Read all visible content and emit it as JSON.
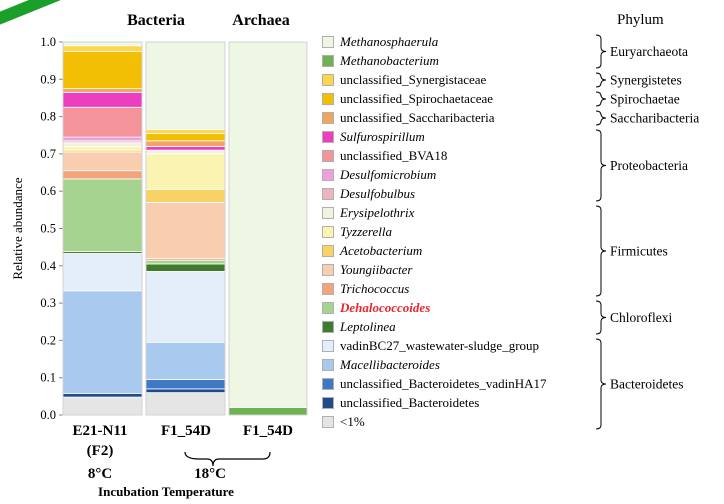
{
  "chart_data": {
    "type": "stacked-bar",
    "ylabel": "Relative abundance",
    "ylim": [
      0,
      1.0
    ],
    "yticks": [
      "0.0",
      "0.1",
      "0.2",
      "0.3",
      "0.4",
      "0.5",
      "0.6",
      "0.7",
      "0.8",
      "0.9",
      "1.0"
    ],
    "column_headers": [
      {
        "label": "Bacteria"
      },
      {
        "label": "Archaea"
      }
    ],
    "bars": [
      {
        "category": "E21-N11",
        "category_line2": "(F2)",
        "domain": "Bacteria",
        "segments": [
          {
            "taxon": "<1%",
            "value": 0.048
          },
          {
            "taxon": "unclassified_Bacteroidetes",
            "value": 0.01
          },
          {
            "taxon": "Macellibacteroides",
            "value": 0.275
          },
          {
            "taxon": "vadinBC27_wastewater-sludge_group",
            "value": 0.1
          },
          {
            "taxon": "Leptolinea",
            "value": 0.005
          },
          {
            "taxon": "Dehalococcoides",
            "value": 0.195
          },
          {
            "taxon": "Trichococcus",
            "value": 0.022
          },
          {
            "taxon": "Youngiibacter",
            "value": 0.05
          },
          {
            "taxon": "Acetobacterium",
            "value": 0.005
          },
          {
            "taxon": "Tyzzerella",
            "value": 0.01
          },
          {
            "taxon": "Erysipelothrix",
            "value": 0.01
          },
          {
            "taxon": "Desulfobulbus",
            "value": 0.005
          },
          {
            "taxon": "Desulfomicrobium",
            "value": 0.01
          },
          {
            "taxon": "unclassified_BVA18",
            "value": 0.08
          },
          {
            "taxon": "Sulfurospirillum",
            "value": 0.04
          },
          {
            "taxon": "unclassified_Saccharibacteria",
            "value": 0.01
          },
          {
            "taxon": "unclassified_Spirochaetaceae",
            "value": 0.1
          },
          {
            "taxon": "unclassified_Synergistaceae",
            "value": 0.015
          },
          {
            "taxon": "Methanobacterium",
            "value": 0.0
          },
          {
            "taxon": "Methanosphaerula",
            "value": 0.01
          }
        ]
      },
      {
        "category": "F1_54D",
        "domain": "Bacteria",
        "segments": [
          {
            "taxon": "<1%",
            "value": 0.06
          },
          {
            "taxon": "unclassified_Bacteroidetes",
            "value": 0.01
          },
          {
            "taxon": "unclassified_Bacteroidetes_vadinHA17",
            "value": 0.025
          },
          {
            "taxon": "Macellibacteroides",
            "value": 0.1
          },
          {
            "taxon": "vadinBC27_wastewater-sludge_group",
            "value": 0.19
          },
          {
            "taxon": "Leptolinea",
            "value": 0.02
          },
          {
            "taxon": "Dehalococcoides",
            "value": 0.01
          },
          {
            "taxon": "Trichococcus",
            "value": 0.005
          },
          {
            "taxon": "Youngiibacter",
            "value": 0.15
          },
          {
            "taxon": "Acetobacterium",
            "value": 0.035
          },
          {
            "taxon": "Tyzzerella",
            "value": 0.095
          },
          {
            "taxon": "Erysipelothrix",
            "value": 0.01
          },
          {
            "taxon": "Sulfurospirillum",
            "value": 0.01
          },
          {
            "taxon": "unclassified_Saccharibacteria",
            "value": 0.015
          },
          {
            "taxon": "unclassified_Spirochaetaceae",
            "value": 0.02
          },
          {
            "taxon": "unclassified_Synergistaceae",
            "value": 0.01
          },
          {
            "taxon": "Methanosphaerula",
            "value": 0.235
          }
        ]
      },
      {
        "category": "F1_54D",
        "domain": "Archaea",
        "segments": [
          {
            "taxon": "Methanobacterium",
            "value": 0.02
          },
          {
            "taxon": "Methanosphaerula",
            "value": 0.98
          }
        ]
      }
    ],
    "legend": [
      {
        "label": "Methanosphaerula",
        "color": "#eef6e4",
        "italic": true
      },
      {
        "label": "Methanobacterium",
        "color": "#6fb253",
        "italic": true
      },
      {
        "label": "unclassified_Synergistaceae",
        "color": "#ffd54a",
        "italic": false
      },
      {
        "label": "unclassified_Spirochaetaceae",
        "color": "#f2bf05",
        "italic": false
      },
      {
        "label": "unclassified_Saccharibacteria",
        "color": "#f4a461",
        "italic": false
      },
      {
        "label": "Sulfurospirillum",
        "color": "#ec3fc0",
        "italic": true
      },
      {
        "label": "unclassified_BVA18",
        "color": "#f4949a",
        "italic": false
      },
      {
        "label": "Desulfomicrobium",
        "color": "#eca1dc",
        "italic": true
      },
      {
        "label": "Desulfobulbus",
        "color": "#ebb5c0",
        "italic": true
      },
      {
        "label": "Erysipelothrix",
        "color": "#f1f3df",
        "italic": true
      },
      {
        "label": "Tyzzerella",
        "color": "#fbf3b2",
        "italic": true
      },
      {
        "label": "Acetobacterium",
        "color": "#f9d266",
        "italic": true
      },
      {
        "label": "Youngiibacter",
        "color": "#f9cdb0",
        "italic": true
      },
      {
        "label": "Trichococcus",
        "color": "#f4a47a",
        "italic": true
      },
      {
        "label": "Dehalococcoides",
        "color": "#a6d38f",
        "italic": true,
        "highlight": true
      },
      {
        "label": "Leptolinea",
        "color": "#3e7b2a",
        "italic": true
      },
      {
        "label": "vadinBC27_wastewater-sludge_group",
        "color": "#e3eefa",
        "italic": false
      },
      {
        "label": "Macellibacteroides",
        "color": "#a9c9ef",
        "italic": true
      },
      {
        "label": "unclassified_Bacteroidetes_vadinHA17",
        "color": "#3f79c5",
        "italic": false
      },
      {
        "label": "unclassified_Bacteroidetes",
        "color": "#1f4d8c",
        "italic": false
      },
      {
        "label": "<1%",
        "color": "#e5e5e5",
        "italic": false
      }
    ],
    "phylum_header": "Phylum",
    "phyla": [
      {
        "name": "Euryarchaeota",
        "first": 0,
        "last": 1
      },
      {
        "name": "Synergistetes",
        "first": 2,
        "last": 2
      },
      {
        "name": "Spirochaetae",
        "first": 3,
        "last": 3
      },
      {
        "name": "Saccharibacteria",
        "first": 4,
        "last": 4
      },
      {
        "name": "Proteobacteria",
        "first": 5,
        "last": 8
      },
      {
        "name": "Firmicutes",
        "first": 9,
        "last": 13
      },
      {
        "name": "Chloroflexi",
        "first": 14,
        "last": 15
      },
      {
        "name": "Bacteroidetes",
        "first": 16,
        "last": 20
      }
    ],
    "temperatures": [
      {
        "label": "8°C"
      },
      {
        "label": "18°C"
      }
    ],
    "temperature_caption": "Incubation Temperature"
  }
}
